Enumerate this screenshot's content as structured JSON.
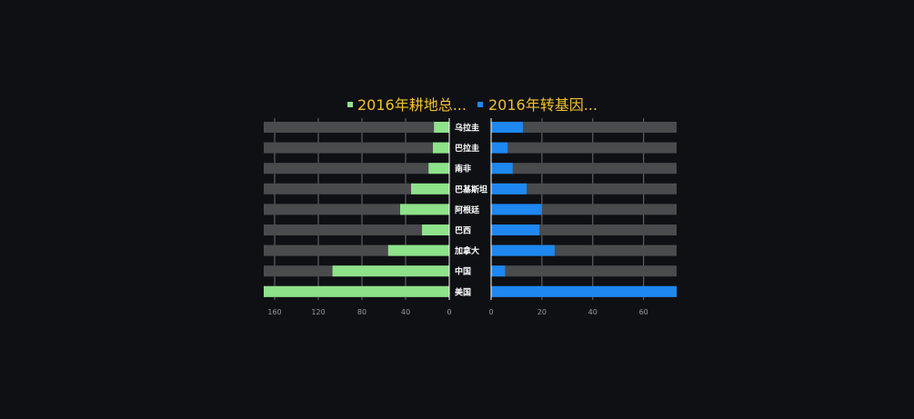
{
  "chart_data": {
    "type": "bar",
    "orientation": "horizontal-butterfly",
    "legend_position": "top-center",
    "categories": [
      "乌拉圭",
      "巴拉圭",
      "南非",
      "巴基斯坦",
      "阿根廷",
      "巴西",
      "加拿大",
      "中国",
      "美国"
    ],
    "series": [
      {
        "name": "2016年耕地总...",
        "color": "#8ee28a",
        "values": [
          14,
          15,
          19,
          35,
          45,
          25,
          56,
          107,
          170
        ],
        "axis_ticks": [
          160,
          120,
          80,
          40,
          0
        ],
        "xlim": [
          0,
          170
        ],
        "direction": "reversed"
      },
      {
        "name": "2016年转基因...",
        "color": "#1e88f0",
        "values": [
          12.5,
          6.5,
          8.5,
          14,
          20,
          19,
          25,
          5.5,
          73
        ],
        "axis_ticks": [
          0,
          20,
          40,
          60
        ],
        "xlim": [
          0,
          73
        ],
        "direction": "normal"
      }
    ],
    "background_bar_color": "#4a4b4d",
    "grid": true
  }
}
